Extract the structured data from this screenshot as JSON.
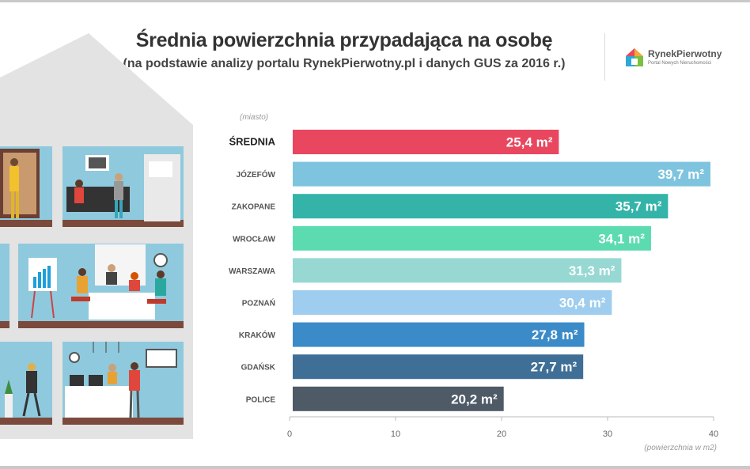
{
  "header": {
    "title": "Średnia powierzchnia przypadająca na osobę",
    "subtitle": "(na podstawie analizy portalu RynekPierwotny.pl i danych GUS za 2016 r.)"
  },
  "logo": {
    "name": "RynekPierwotny",
    "tagline": "Portal Nowych Nieruchomości"
  },
  "chart_data": {
    "type": "bar",
    "orientation": "horizontal",
    "category_axis_label": "(miasto)",
    "value_axis_label": "(powierzchnia w m2)",
    "xlim": [
      0,
      40
    ],
    "ticks": [
      "0",
      "10",
      "20",
      "30",
      "40"
    ],
    "grid": false,
    "categories": [
      "ŚREDNIA",
      "JÓZEFÓW",
      "ZAKOPANE",
      "WROCŁAW",
      "WARSZAWA",
      "POZNAŃ",
      "KRAKÓW",
      "GDAŃSK",
      "POLICE"
    ],
    "values": [
      25.4,
      39.7,
      35.7,
      34.1,
      31.3,
      30.4,
      27.8,
      27.7,
      20.2
    ],
    "value_labels": [
      "25,4 m²",
      "39,7 m²",
      "35,7 m²",
      "34,1 m²",
      "31,3 m²",
      "30,4 m²",
      "27,8 m²",
      "27,7 m²",
      "20,2 m²"
    ],
    "colors": [
      "#e8475f",
      "#7ec4df",
      "#34b3a8",
      "#5ddbb0",
      "#97d8d3",
      "#9fcdef",
      "#3b8bc9",
      "#3f6f96",
      "#4e5a66"
    ]
  }
}
